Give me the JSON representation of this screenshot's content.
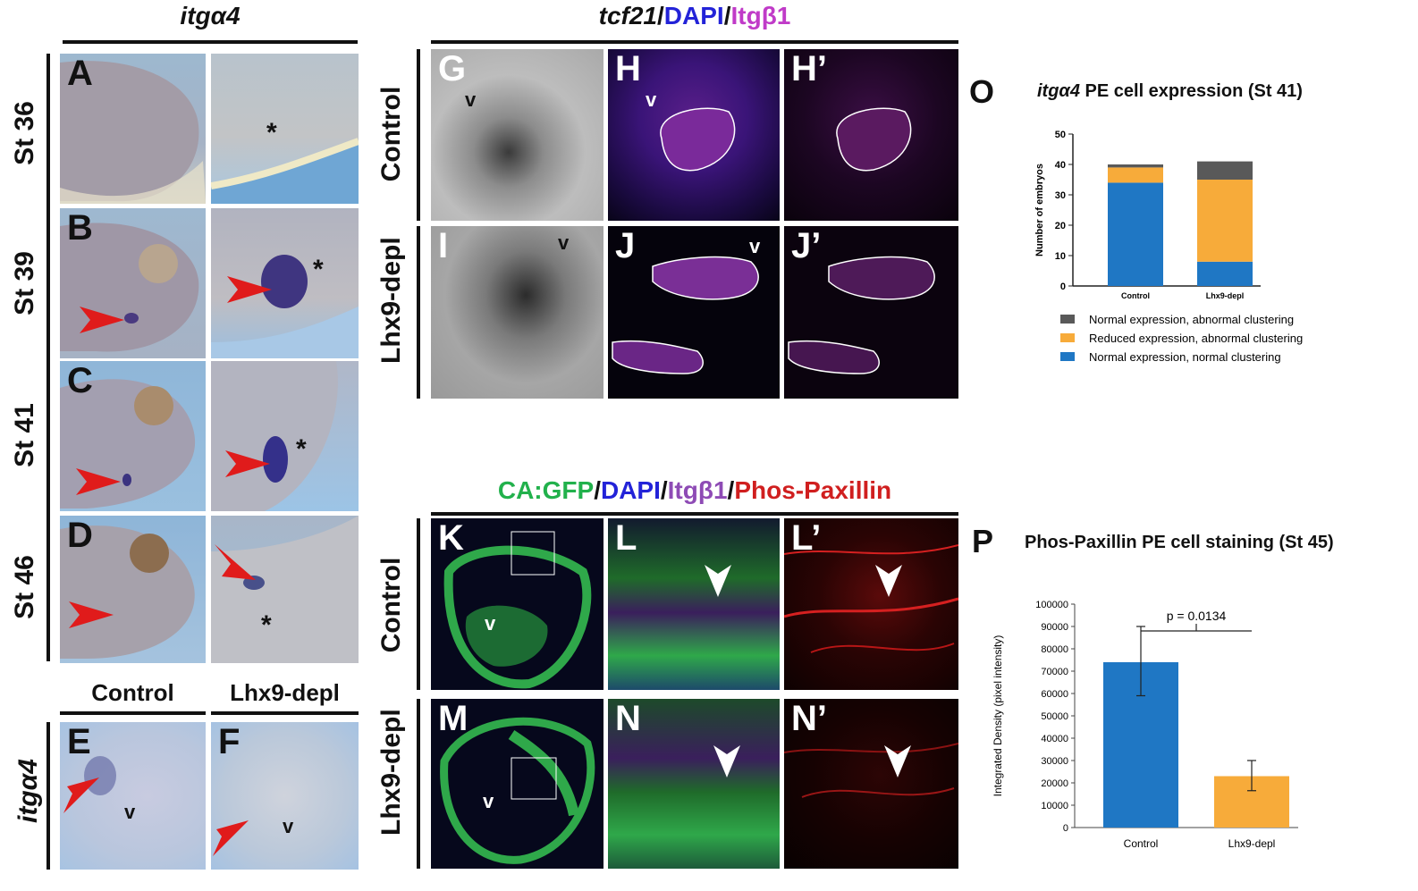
{
  "left": {
    "gene_header": "itgα4",
    "rows": [
      "St 36",
      "St 39",
      "St 41",
      "St 46"
    ],
    "panel_labels": [
      "A",
      "B",
      "C",
      "D"
    ],
    "asterisk": "*",
    "bottom_cols": [
      "Control",
      "Lhx9-depl"
    ],
    "bottom_row_label": "itgα4",
    "bottom_panel_labels": [
      "E",
      "F"
    ],
    "v_marker": "v"
  },
  "middle_top": {
    "header_parts": [
      "tcf21",
      "/",
      "DAPI",
      "/",
      "Itgβ1"
    ],
    "rows": [
      "Control",
      "Lhx9-depl"
    ],
    "panel_labels": [
      "G",
      "H",
      "H’",
      "I",
      "J",
      "J’"
    ],
    "v_marker": "v"
  },
  "middle_bottom": {
    "header_parts": [
      "CA:GFP",
      "/",
      "DAPI",
      "/",
      "Itgβ1",
      "/",
      "Phos-Paxillin"
    ],
    "rows": [
      "Control",
      "Lhx9-depl"
    ],
    "panel_labels": [
      "K",
      "L",
      "L’",
      "M",
      "N",
      "N’"
    ],
    "v_marker": "v"
  },
  "colors": {
    "blue": "#1f77c4",
    "orange": "#f7ab3a",
    "gray": "#595959",
    "arrow_red": "#e01b1b"
  },
  "chart_O": {
    "letter": "O",
    "title_gene": "itgα4",
    "title_rest": " PE cell expression (St 41)"
  },
  "chart_P": {
    "letter": "P",
    "title": "Phos-Paxillin PE cell staining (St 45)",
    "p_value": "p = 0.0134"
  },
  "chart_data": [
    {
      "type": "bar",
      "stacked": true,
      "title": "itgα4 PE cell expression (St 41)",
      "ylabel": "Number of embryos",
      "categories": [
        "Control",
        "Lhx9-depl"
      ],
      "ylim": [
        0,
        50
      ],
      "yticks": [
        "0",
        "10",
        "20",
        "30",
        "40",
        "50"
      ],
      "series": [
        {
          "name": "Normal expression, normal clustering",
          "values": [
            34,
            8
          ],
          "color": "#1f77c4"
        },
        {
          "name": "Reduced expression, abnormal clustering",
          "values": [
            5,
            27
          ],
          "color": "#f7ab3a"
        },
        {
          "name": "Normal expression, abnormal clustering",
          "values": [
            1,
            6
          ],
          "color": "#595959"
        }
      ],
      "legend_order": [
        "Normal expression, abnormal clustering",
        "Reduced expression, abnormal clustering",
        "Normal expression, normal clustering"
      ],
      "legend_position": "bottom"
    },
    {
      "type": "bar",
      "title": "Phos-Paxillin PE cell staining (St 45)",
      "ylabel": "Integrated Density (pixel intensity)",
      "categories": [
        "Control",
        "Lhx9-depl"
      ],
      "values": [
        74000,
        23000
      ],
      "error_low": [
        59000,
        16500
      ],
      "error_high": [
        90000,
        30000
      ],
      "ylim": [
        0,
        100000
      ],
      "yticks": [
        "0",
        "10000",
        "20000",
        "30000",
        "40000",
        "50000",
        "60000",
        "70000",
        "80000",
        "90000",
        "100000"
      ],
      "annotation": "p = 0.0134",
      "colors": [
        "#1f77c4",
        "#f7ab3a"
      ]
    }
  ]
}
